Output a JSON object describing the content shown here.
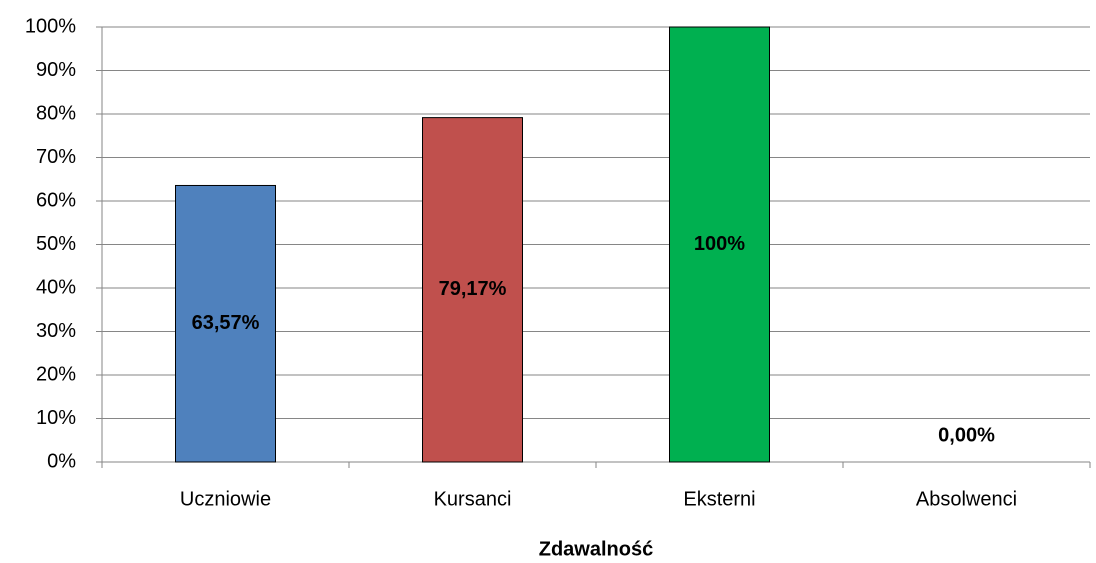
{
  "chart_data": {
    "type": "bar",
    "x_label": "Zdawalność",
    "categories": [
      "Uczniowie",
      "Kursanci",
      "Eksterni",
      "Absolwenci"
    ],
    "values": [
      63.57,
      79.17,
      100,
      0
    ],
    "value_labels": [
      "63,57%",
      "79,17%",
      "100%",
      "0,00%"
    ],
    "colors": [
      "#4f81bd",
      "#c0504d",
      "#00b050",
      "#8064a2"
    ],
    "ylim": [
      0,
      100
    ],
    "yticks": [
      {
        "value": 0,
        "label": "0%"
      },
      {
        "value": 10,
        "label": "10%"
      },
      {
        "value": 20,
        "label": "20%"
      },
      {
        "value": 30,
        "label": "30%"
      },
      {
        "value": 40,
        "label": "40%"
      },
      {
        "value": 50,
        "label": "50%"
      },
      {
        "value": 60,
        "label": "60%"
      },
      {
        "value": 70,
        "label": "70%"
      },
      {
        "value": 80,
        "label": "80%"
      },
      {
        "value": 90,
        "label": "90%"
      },
      {
        "value": 100,
        "label": "100%"
      }
    ],
    "grid": true
  }
}
